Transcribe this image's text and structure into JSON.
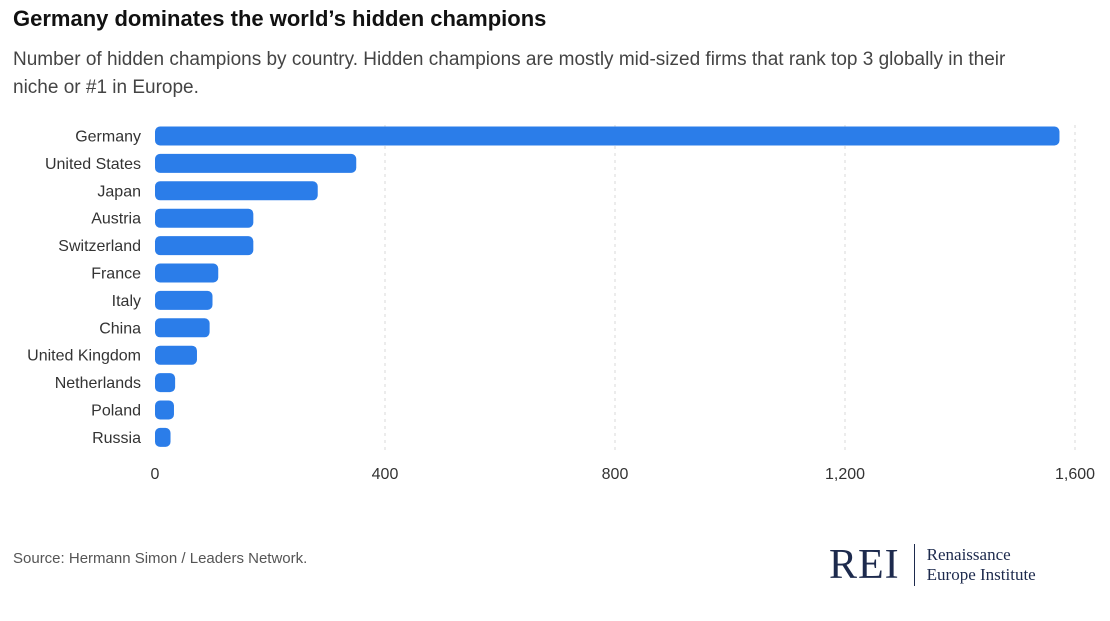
{
  "title": "Germany dominates the world’s hidden champions",
  "subtitle": "Number of hidden champions by country. Hidden champions are mostly mid-sized firms that rank top 3 globally in their niche or #1 in Europe.",
  "source": "Source: Hermann Simon / Leaders Network.",
  "logo": {
    "mark": "REI",
    "line1": "Renaissance",
    "line2": "Europe Institute"
  },
  "colors": {
    "bar": "#2b7de9",
    "grid": "#d9d9d9",
    "brand": "#1d2a4d"
  },
  "chart_data": {
    "type": "bar",
    "orientation": "horizontal",
    "categories": [
      "Germany",
      "United States",
      "Japan",
      "Austria",
      "Switzerland",
      "France",
      "Italy",
      "China",
      "United Kingdom",
      "Netherlands",
      "Poland",
      "Russia"
    ],
    "values": [
      1573,
      350,
      283,
      171,
      171,
      110,
      100,
      95,
      73,
      35,
      33,
      27
    ],
    "xlim": [
      0,
      1600
    ],
    "xticks": [
      0,
      400,
      800,
      1200,
      1600
    ],
    "xtick_labels": [
      "0",
      "400",
      "800",
      "1,200",
      "1,600"
    ],
    "grid": "vertical dashed",
    "xlabel": "",
    "ylabel": ""
  }
}
